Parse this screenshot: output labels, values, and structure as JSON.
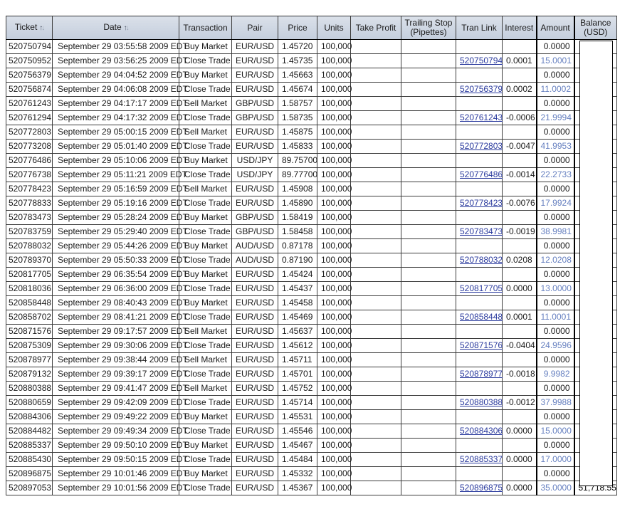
{
  "table": {
    "columns": [
      {
        "key": "ticket",
        "label": "Ticket",
        "sortable": true
      },
      {
        "key": "date",
        "label": "Date",
        "sortable": true
      },
      {
        "key": "transaction",
        "label": "Transaction",
        "sortable": false
      },
      {
        "key": "pair",
        "label": "Pair",
        "sortable": false
      },
      {
        "key": "price",
        "label": "Price",
        "sortable": false
      },
      {
        "key": "units",
        "label": "Units",
        "sortable": false
      },
      {
        "key": "take_profit",
        "label": "Take Profit",
        "sortable": false
      },
      {
        "key": "trailing_stop",
        "label": "Trailing Stop (Pipettes)",
        "sortable": false
      },
      {
        "key": "tran_link",
        "label": "Tran Link",
        "sortable": false
      },
      {
        "key": "interest",
        "label": "Interest",
        "sortable": false
      },
      {
        "key": "amount",
        "label": "Amount",
        "sortable": false
      },
      {
        "key": "balance",
        "label": "Balance (USD)",
        "sortable": false
      }
    ],
    "sort_icons": {
      "asc": "↑",
      "desc": "↓"
    },
    "rows": [
      {
        "ticket": "520750794",
        "date": "September 29 03:55:58 2009 EDT",
        "transaction": "Buy Market",
        "pair": "EUR/USD",
        "price": "1.45720",
        "units": "100,000",
        "take_profit": "",
        "trailing_stop": "",
        "tran_link": "",
        "interest": "",
        "amount": "0.0000",
        "balance": ""
      },
      {
        "ticket": "520750952",
        "date": "September 29 03:56:25 2009 EDT",
        "transaction": "Close Trade",
        "pair": "EUR/USD",
        "price": "1.45735",
        "units": "100,000",
        "take_profit": "",
        "trailing_stop": "",
        "tran_link": "520750794",
        "interest": "0.0001",
        "amount": "15.0001",
        "balance": ""
      },
      {
        "ticket": "520756379",
        "date": "September 29 04:04:52 2009 EDT",
        "transaction": "Buy Market",
        "pair": "EUR/USD",
        "price": "1.45663",
        "units": "100,000",
        "take_profit": "",
        "trailing_stop": "",
        "tran_link": "",
        "interest": "",
        "amount": "0.0000",
        "balance": ""
      },
      {
        "ticket": "520756874",
        "date": "September 29 04:06:08 2009 EDT",
        "transaction": "Close Trade",
        "pair": "EUR/USD",
        "price": "1.45674",
        "units": "100,000",
        "take_profit": "",
        "trailing_stop": "",
        "tran_link": "520756379",
        "interest": "0.0002",
        "amount": "11.0002",
        "balance": ""
      },
      {
        "ticket": "520761243",
        "date": "September 29 04:17:17 2009 EDT",
        "transaction": "Sell Market",
        "pair": "GBP/USD",
        "price": "1.58757",
        "units": "100,000",
        "take_profit": "",
        "trailing_stop": "",
        "tran_link": "",
        "interest": "",
        "amount": "0.0000",
        "balance": ""
      },
      {
        "ticket": "520761294",
        "date": "September 29 04:17:32 2009 EDT",
        "transaction": "Close Trade",
        "pair": "GBP/USD",
        "price": "1.58735",
        "units": "100,000",
        "take_profit": "",
        "trailing_stop": "",
        "tran_link": "520761243",
        "interest": "-0.0006",
        "amount": "21.9994",
        "balance": ""
      },
      {
        "ticket": "520772803",
        "date": "September 29 05:00:15 2009 EDT",
        "transaction": "Sell Market",
        "pair": "EUR/USD",
        "price": "1.45875",
        "units": "100,000",
        "take_profit": "",
        "trailing_stop": "",
        "tran_link": "",
        "interest": "",
        "amount": "0.0000",
        "balance": ""
      },
      {
        "ticket": "520773208",
        "date": "September 29 05:01:40 2009 EDT",
        "transaction": "Close Trade",
        "pair": "EUR/USD",
        "price": "1.45833",
        "units": "100,000",
        "take_profit": "",
        "trailing_stop": "",
        "tran_link": "520772803",
        "interest": "-0.0047",
        "amount": "41.9953",
        "balance": ""
      },
      {
        "ticket": "520776486",
        "date": "September 29 05:10:06 2009 EDT",
        "transaction": "Buy Market",
        "pair": "USD/JPY",
        "price": "89.75700",
        "units": "100,000",
        "take_profit": "",
        "trailing_stop": "",
        "tran_link": "",
        "interest": "",
        "amount": "0.0000",
        "balance": ""
      },
      {
        "ticket": "520776738",
        "date": "September 29 05:11:21 2009 EDT",
        "transaction": "Close Trade",
        "pair": "USD/JPY",
        "price": "89.77700",
        "units": "100,000",
        "take_profit": "",
        "trailing_stop": "",
        "tran_link": "520776486",
        "interest": "-0.0014",
        "amount": "22.2733",
        "balance": ""
      },
      {
        "ticket": "520778423",
        "date": "September 29 05:16:59 2009 EDT",
        "transaction": "Sell Market",
        "pair": "EUR/USD",
        "price": "1.45908",
        "units": "100,000",
        "take_profit": "",
        "trailing_stop": "",
        "tran_link": "",
        "interest": "",
        "amount": "0.0000",
        "balance": ""
      },
      {
        "ticket": "520778833",
        "date": "September 29 05:19:16 2009 EDT",
        "transaction": "Close Trade",
        "pair": "EUR/USD",
        "price": "1.45890",
        "units": "100,000",
        "take_profit": "",
        "trailing_stop": "",
        "tran_link": "520778423",
        "interest": "-0.0076",
        "amount": "17.9924",
        "balance": ""
      },
      {
        "ticket": "520783473",
        "date": "September 29 05:28:24 2009 EDT",
        "transaction": "Buy Market",
        "pair": "GBP/USD",
        "price": "1.58419",
        "units": "100,000",
        "take_profit": "",
        "trailing_stop": "",
        "tran_link": "",
        "interest": "",
        "amount": "0.0000",
        "balance": ""
      },
      {
        "ticket": "520783759",
        "date": "September 29 05:29:40 2009 EDT",
        "transaction": "Close Trade",
        "pair": "GBP/USD",
        "price": "1.58458",
        "units": "100,000",
        "take_profit": "",
        "trailing_stop": "",
        "tran_link": "520783473",
        "interest": "-0.0019",
        "amount": "38.9981",
        "balance": ""
      },
      {
        "ticket": "520788032",
        "date": "September 29 05:44:26 2009 EDT",
        "transaction": "Buy Market",
        "pair": "AUD/USD",
        "price": "0.87178",
        "units": "100,000",
        "take_profit": "",
        "trailing_stop": "",
        "tran_link": "",
        "interest": "",
        "amount": "0.0000",
        "balance": ""
      },
      {
        "ticket": "520789370",
        "date": "September 29 05:50:33 2009 EDT",
        "transaction": "Close Trade",
        "pair": "AUD/USD",
        "price": "0.87190",
        "units": "100,000",
        "take_profit": "",
        "trailing_stop": "",
        "tran_link": "520788032",
        "interest": "0.0208",
        "amount": "12.0208",
        "balance": ""
      },
      {
        "ticket": "520817705",
        "date": "September 29 06:35:54 2009 EDT",
        "transaction": "Buy Market",
        "pair": "EUR/USD",
        "price": "1.45424",
        "units": "100,000",
        "take_profit": "",
        "trailing_stop": "",
        "tran_link": "",
        "interest": "",
        "amount": "0.0000",
        "balance": ""
      },
      {
        "ticket": "520818036",
        "date": "September 29 06:36:00 2009 EDT",
        "transaction": "Close Trade",
        "pair": "EUR/USD",
        "price": "1.45437",
        "units": "100,000",
        "take_profit": "",
        "trailing_stop": "",
        "tran_link": "520817705",
        "interest": "0.0000",
        "amount": "13.0000",
        "balance": ""
      },
      {
        "ticket": "520858448",
        "date": "September 29 08:40:43 2009 EDT",
        "transaction": "Buy Market",
        "pair": "EUR/USD",
        "price": "1.45458",
        "units": "100,000",
        "take_profit": "",
        "trailing_stop": "",
        "tran_link": "",
        "interest": "",
        "amount": "0.0000",
        "balance": ""
      },
      {
        "ticket": "520858702",
        "date": "September 29 08:41:21 2009 EDT",
        "transaction": "Close Trade",
        "pair": "EUR/USD",
        "price": "1.45469",
        "units": "100,000",
        "take_profit": "",
        "trailing_stop": "",
        "tran_link": "520858448",
        "interest": "0.0001",
        "amount": "11.0001",
        "balance": ""
      },
      {
        "ticket": "520871576",
        "date": "September 29 09:17:57 2009 EDT",
        "transaction": "Sell Market",
        "pair": "EUR/USD",
        "price": "1.45637",
        "units": "100,000",
        "take_profit": "",
        "trailing_stop": "",
        "tran_link": "",
        "interest": "",
        "amount": "0.0000",
        "balance": ""
      },
      {
        "ticket": "520875309",
        "date": "September 29 09:30:06 2009 EDT",
        "transaction": "Close Trade",
        "pair": "EUR/USD",
        "price": "1.45612",
        "units": "100,000",
        "take_profit": "",
        "trailing_stop": "",
        "tran_link": "520871576",
        "interest": "-0.0404",
        "amount": "24.9596",
        "balance": ""
      },
      {
        "ticket": "520878977",
        "date": "September 29 09:38:44 2009 EDT",
        "transaction": "Sell Market",
        "pair": "EUR/USD",
        "price": "1.45711",
        "units": "100,000",
        "take_profit": "",
        "trailing_stop": "",
        "tran_link": "",
        "interest": "",
        "amount": "0.0000",
        "balance": ""
      },
      {
        "ticket": "520879132",
        "date": "September 29 09:39:17 2009 EDT",
        "transaction": "Close Trade",
        "pair": "EUR/USD",
        "price": "1.45701",
        "units": "100,000",
        "take_profit": "",
        "trailing_stop": "",
        "tran_link": "520878977",
        "interest": "-0.0018",
        "amount": "9.9982",
        "balance": ""
      },
      {
        "ticket": "520880388",
        "date": "September 29 09:41:47 2009 EDT",
        "transaction": "Sell Market",
        "pair": "EUR/USD",
        "price": "1.45752",
        "units": "100,000",
        "take_profit": "",
        "trailing_stop": "",
        "tran_link": "",
        "interest": "",
        "amount": "0.0000",
        "balance": ""
      },
      {
        "ticket": "520880659",
        "date": "September 29 09:42:09 2009 EDT",
        "transaction": "Close Trade",
        "pair": "EUR/USD",
        "price": "1.45714",
        "units": "100,000",
        "take_profit": "",
        "trailing_stop": "",
        "tran_link": "520880388",
        "interest": "-0.0012",
        "amount": "37.9988",
        "balance": ""
      },
      {
        "ticket": "520884306",
        "date": "September 29 09:49:22 2009 EDT",
        "transaction": "Buy Market",
        "pair": "EUR/USD",
        "price": "1.45531",
        "units": "100,000",
        "take_profit": "",
        "trailing_stop": "",
        "tran_link": "",
        "interest": "",
        "amount": "0.0000",
        "balance": ""
      },
      {
        "ticket": "520884482",
        "date": "September 29 09:49:34 2009 EDT",
        "transaction": "Close Trade",
        "pair": "EUR/USD",
        "price": "1.45546",
        "units": "100,000",
        "take_profit": "",
        "trailing_stop": "",
        "tran_link": "520884306",
        "interest": "0.0000",
        "amount": "15.0000",
        "balance": ""
      },
      {
        "ticket": "520885337",
        "date": "September 29 09:50:10 2009 EDT",
        "transaction": "Buy Market",
        "pair": "EUR/USD",
        "price": "1.45467",
        "units": "100,000",
        "take_profit": "",
        "trailing_stop": "",
        "tran_link": "",
        "interest": "",
        "amount": "0.0000",
        "balance": ""
      },
      {
        "ticket": "520885430",
        "date": "September 29 09:50:15 2009 EDT",
        "transaction": "Close Trade",
        "pair": "EUR/USD",
        "price": "1.45484",
        "units": "100,000",
        "take_profit": "",
        "trailing_stop": "",
        "tran_link": "520885337",
        "interest": "0.0000",
        "amount": "17.0000",
        "balance": ""
      },
      {
        "ticket": "520896875",
        "date": "September 29 10:01:46 2009 EDT",
        "transaction": "Buy Market",
        "pair": "EUR/USD",
        "price": "1.45332",
        "units": "100,000",
        "take_profit": "",
        "trailing_stop": "",
        "tran_link": "",
        "interest": "",
        "amount": "0.0000",
        "balance": ""
      },
      {
        "ticket": "520897053",
        "date": "September 29 10:01:56 2009 EDT",
        "transaction": "Close Trade",
        "pair": "EUR/USD",
        "price": "1.45367",
        "units": "100,000",
        "take_profit": "",
        "trailing_stop": "",
        "tran_link": "520896875",
        "interest": "0.0000",
        "amount": "35.0000",
        "balance": "51,718.55"
      }
    ]
  },
  "balance_overlay": {
    "description": "white redaction box covering Balance (USD) column values",
    "last_row_partial_value": "51,718.55"
  },
  "colors": {
    "header_bg_top": "#dae0e9",
    "header_bg_bottom": "#c4cedd",
    "grid_border": "#3c3c3c",
    "thick_border": "#000000",
    "link_blue": "#2b3b9e",
    "amount_blue": "#6680c0",
    "text": "#1a1a1a"
  }
}
